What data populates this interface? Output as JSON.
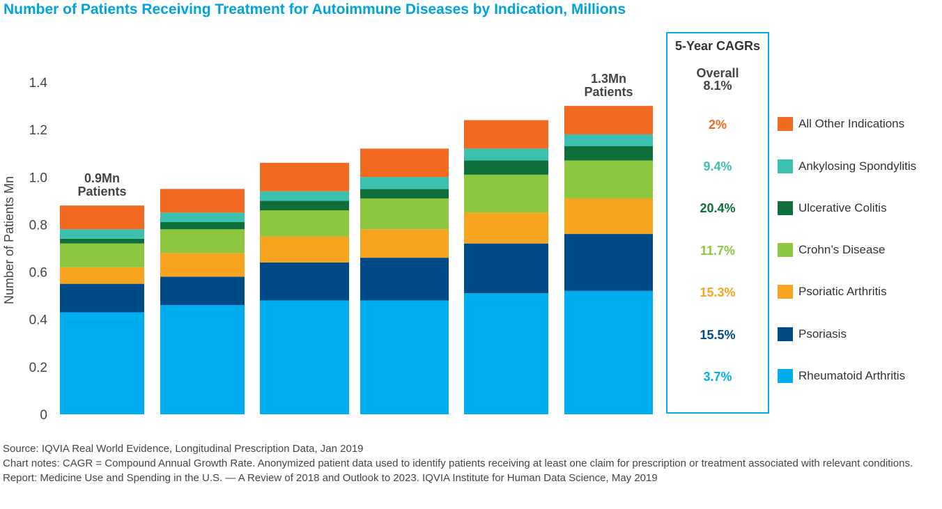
{
  "title": "Number of Patients Receiving Treatment for Autoimmune Diseases by Indication, Millions",
  "chart_data": {
    "type": "bar",
    "stacked": true,
    "title": "Number of Patients Receiving Treatment for Autoimmune Diseases by Indication, Millions",
    "ylabel": "Number of Patients Mn",
    "xlabel": "",
    "ylim": [
      0,
      1.4
    ],
    "yticks": [
      "0",
      "0.2",
      "0.4",
      "0.6",
      "0.8",
      "1.0",
      "1.2",
      "1.4"
    ],
    "categories": [
      "",
      "",
      "",
      "",
      "",
      ""
    ],
    "series": [
      {
        "name": "Rheumatoid Arthritis",
        "color": "#00aeef",
        "values": [
          0.43,
          0.46,
          0.48,
          0.48,
          0.51,
          0.52
        ]
      },
      {
        "name": "Psoriasis",
        "color": "#004b87",
        "values": [
          0.12,
          0.12,
          0.16,
          0.18,
          0.21,
          0.24
        ]
      },
      {
        "name": "Psoriatic Arthritis",
        "color": "#f7a521",
        "values": [
          0.07,
          0.1,
          0.11,
          0.12,
          0.13,
          0.15
        ]
      },
      {
        "name": "Crohn’s Disease",
        "color": "#8dc63f",
        "values": [
          0.1,
          0.1,
          0.11,
          0.13,
          0.16,
          0.16
        ]
      },
      {
        "name": "Ulcerative Colitis",
        "color": "#0e6f3a",
        "values": [
          0.02,
          0.03,
          0.04,
          0.04,
          0.06,
          0.06
        ]
      },
      {
        "name": "Ankylosing Spondylitis",
        "color": "#3cc0b0",
        "values": [
          0.04,
          0.04,
          0.04,
          0.05,
          0.05,
          0.05
        ]
      },
      {
        "name": "All Other Indications",
        "color": "#f26a21",
        "values": [
          0.1,
          0.1,
          0.12,
          0.12,
          0.12,
          0.12
        ]
      }
    ],
    "annotations": [
      {
        "bar": 0,
        "lines": [
          "0.9Mn",
          "Patients"
        ]
      },
      {
        "bar": 5,
        "lines": [
          "1.3Mn",
          "Patients"
        ]
      }
    ]
  },
  "cagr": {
    "title": "5-Year CAGRs",
    "overall_label": "Overall",
    "overall_value": "8.1%",
    "values": [
      {
        "series": "All Other Indications",
        "value": "2%",
        "color": "#f26a21"
      },
      {
        "series": "Ankylosing Spondylitis",
        "value": "9.4%",
        "color": "#3cc0b0"
      },
      {
        "series": "Ulcerative Colitis",
        "value": "20.4%",
        "color": "#0e6f3a"
      },
      {
        "series": "Crohn’s Disease",
        "value": "11.7%",
        "color": "#8dc63f"
      },
      {
        "series": "Psoriatic Arthritis",
        "value": "15.3%",
        "color": "#f7a521"
      },
      {
        "series": "Psoriasis",
        "value": "15.5%",
        "color": "#004b87"
      },
      {
        "series": "Rheumatoid Arthritis",
        "value": "3.7%",
        "color": "#00aeef"
      }
    ]
  },
  "legend": [
    {
      "label": "All Other Indications",
      "color": "#f26a21"
    },
    {
      "label": "Ankylosing Spondylitis",
      "color": "#3cc0b0"
    },
    {
      "label": "Ulcerative Colitis",
      "color": "#0e6f3a"
    },
    {
      "label": "Crohn’s Disease",
      "color": "#8dc63f"
    },
    {
      "label": "Psoriatic Arthritis",
      "color": "#f7a521"
    },
    {
      "label": "Psoriasis",
      "color": "#004b87"
    },
    {
      "label": "Rheumatoid Arthritis",
      "color": "#00aeef"
    }
  ],
  "notes": {
    "source": "Source: IQVIA Real World Evidence, Longitudinal Prescription Data, Jan 2019",
    "chart_notes": "Chart notes: CAGR = Compound Annual Growth Rate. Anonymized patient data used to identify patients receiving at least one claim for prescription or treatment associated with relevant conditions.",
    "report": "Report: Medicine Use and Spending in the U.S. — A Review of 2018 and Outlook to 2023. IQVIA Institute for Human Data Science, May 2019"
  }
}
